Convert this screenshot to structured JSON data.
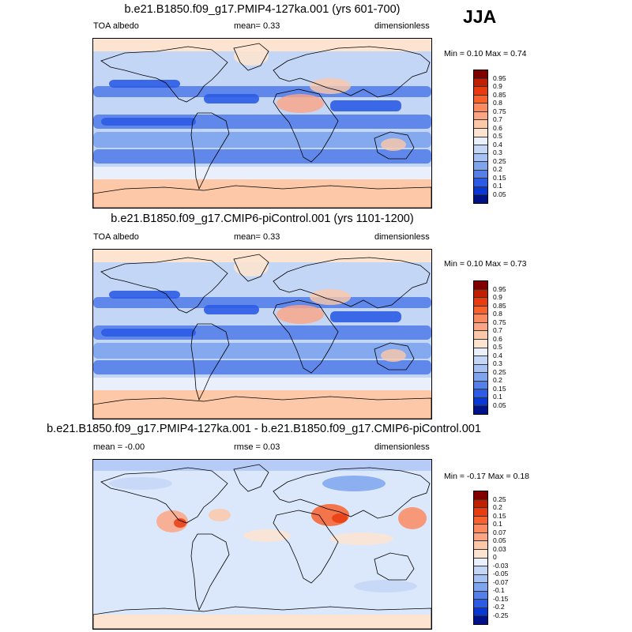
{
  "season": "JJA",
  "panels": [
    {
      "title": "b.e21.B1850.f09_g17.PMIP4-127ka.001 (yrs 601-700)",
      "left": "TOA albedo",
      "center": "mean=   0.33",
      "right": "dimensionless",
      "min_label": "Min =",
      "min": "0.10",
      "max_label": "Max =",
      "max": "0.74",
      "legend": [
        "0.95",
        "0.9",
        "0.85",
        "0.8",
        "0.75",
        "0.7",
        "0.6",
        "0.5",
        "0.4",
        "0.3",
        "0.25",
        "0.2",
        "0.15",
        "0.1",
        "0.05"
      ],
      "colors": [
        "#800000",
        "#c02000",
        "#e83c10",
        "#f8602c",
        "#fb8a60",
        "#fca584",
        "#fcc8a8",
        "#fde4d0",
        "#eaf0fb",
        "#c4d6f6",
        "#a6c1f4",
        "#7ea4ee",
        "#5580ea",
        "#2c5ce6",
        "#0a38d4",
        "#00128a"
      ]
    },
    {
      "title": "b.e21.B1850.f09_g17.CMIP6-piControl.001 (yrs 1101-1200)",
      "left": "TOA albedo",
      "center": "mean=   0.33",
      "right": "dimensionless",
      "min_label": "Min =",
      "min": "0.10",
      "max_label": "Max =",
      "max": "0.73",
      "legend": [
        "0.95",
        "0.9",
        "0.85",
        "0.8",
        "0.75",
        "0.7",
        "0.6",
        "0.5",
        "0.4",
        "0.3",
        "0.25",
        "0.2",
        "0.15",
        "0.1",
        "0.05"
      ],
      "colors": [
        "#800000",
        "#c02000",
        "#e83c10",
        "#f8602c",
        "#fb8a60",
        "#fca584",
        "#fcc8a8",
        "#fde4d0",
        "#eaf0fb",
        "#c4d6f6",
        "#a6c1f4",
        "#7ea4ee",
        "#5580ea",
        "#2c5ce6",
        "#0a38d4",
        "#00128a"
      ]
    },
    {
      "title": "b.e21.B1850.f09_g17.PMIP4-127ka.001 - b.e21.B1850.f09_g17.CMIP6-piControl.001",
      "left": "mean =  -0.00",
      "center": "rmse =  0.03",
      "right": "dimensionless",
      "min_label": "Min =",
      "min": "-0.17",
      "max_label": "Max =",
      "max": "0.18",
      "legend": [
        "0.25",
        "0.2",
        "0.15",
        "0.1",
        "0.07",
        "0.05",
        "0.03",
        "0",
        "-0.03",
        "-0.05",
        "-0.07",
        "-0.1",
        "-0.15",
        "-0.2",
        "-0.25"
      ],
      "colors": [
        "#800000",
        "#c02000",
        "#e83c10",
        "#f8602c",
        "#fb8a60",
        "#fca584",
        "#fcc8a8",
        "#fde4d0",
        "#eaf0fb",
        "#c4d6f6",
        "#a6c1f4",
        "#7ea4ee",
        "#5580ea",
        "#2c5ce6",
        "#0a38d4",
        "#00128a"
      ]
    }
  ]
}
